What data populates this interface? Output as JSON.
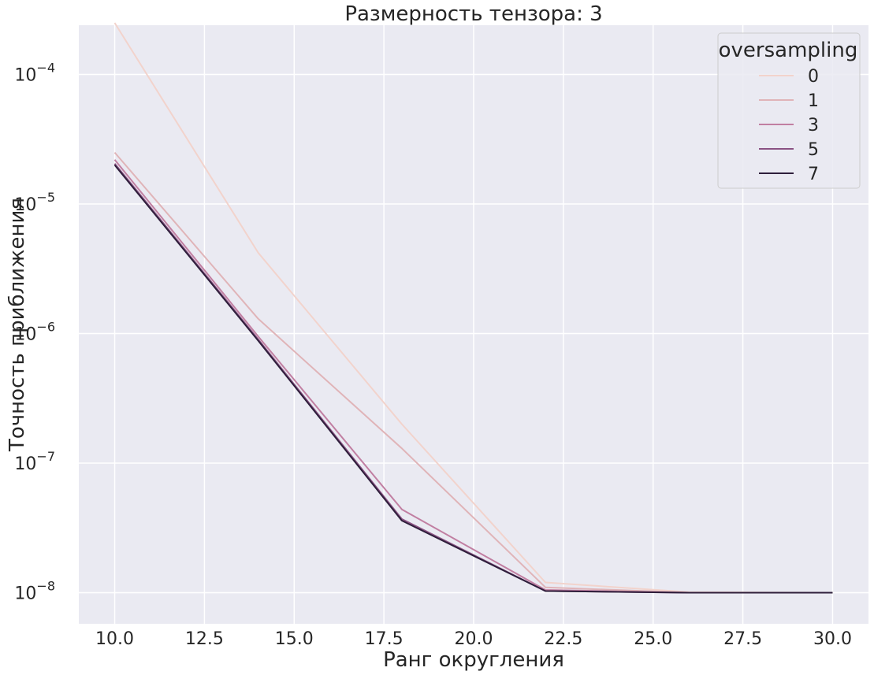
{
  "chart_data": {
    "type": "line",
    "title": "Размерность тензора: 3",
    "xlabel": "Ранг округления",
    "ylabel": "Точность приближения",
    "yscale": "log",
    "xlim": [
      9.0,
      31.0
    ],
    "ylim_log10": [
      -8.24,
      -3.62
    ],
    "x_ticks": [
      10.0,
      12.5,
      15.0,
      17.5,
      20.0,
      22.5,
      25.0,
      27.5,
      30.0
    ],
    "x_tick_labels": [
      "10.0",
      "12.5",
      "15.0",
      "17.5",
      "20.0",
      "22.5",
      "25.0",
      "27.5",
      "30.0"
    ],
    "y_tick_exponents": [
      -8,
      -7,
      -6,
      -5,
      -4
    ],
    "y_tick_base": "10",
    "grid": true,
    "background": "#eaeaf2",
    "x": [
      10,
      14,
      18,
      22,
      26,
      30
    ],
    "legend": {
      "title": "oversampling",
      "placement": "top-right"
    },
    "series": [
      {
        "name": "0",
        "color": "#f2d3cc",
        "values": [
          0.00025,
          4.2e-06,
          2e-07,
          1.2e-08,
          1.01e-08,
          1e-08
        ]
      },
      {
        "name": "1",
        "color": "#e0b4b8",
        "values": [
          2.5e-05,
          1.3e-06,
          1.3e-07,
          1.1e-08,
          1e-08,
          1e-08
        ]
      },
      {
        "name": "3",
        "color": "#c17fa2",
        "values": [
          2.2e-05,
          9.5e-07,
          4.4e-08,
          1.05e-08,
          1e-08,
          1e-08
        ]
      },
      {
        "name": "5",
        "color": "#8a5283",
        "values": [
          2.05e-05,
          9e-07,
          3.7e-08,
          1.03e-08,
          1e-08,
          1e-08
        ]
      },
      {
        "name": "7",
        "color": "#2e1e3b",
        "values": [
          2e-05,
          8.8e-07,
          3.6e-08,
          1.03e-08,
          1e-08,
          1e-08
        ]
      }
    ]
  }
}
